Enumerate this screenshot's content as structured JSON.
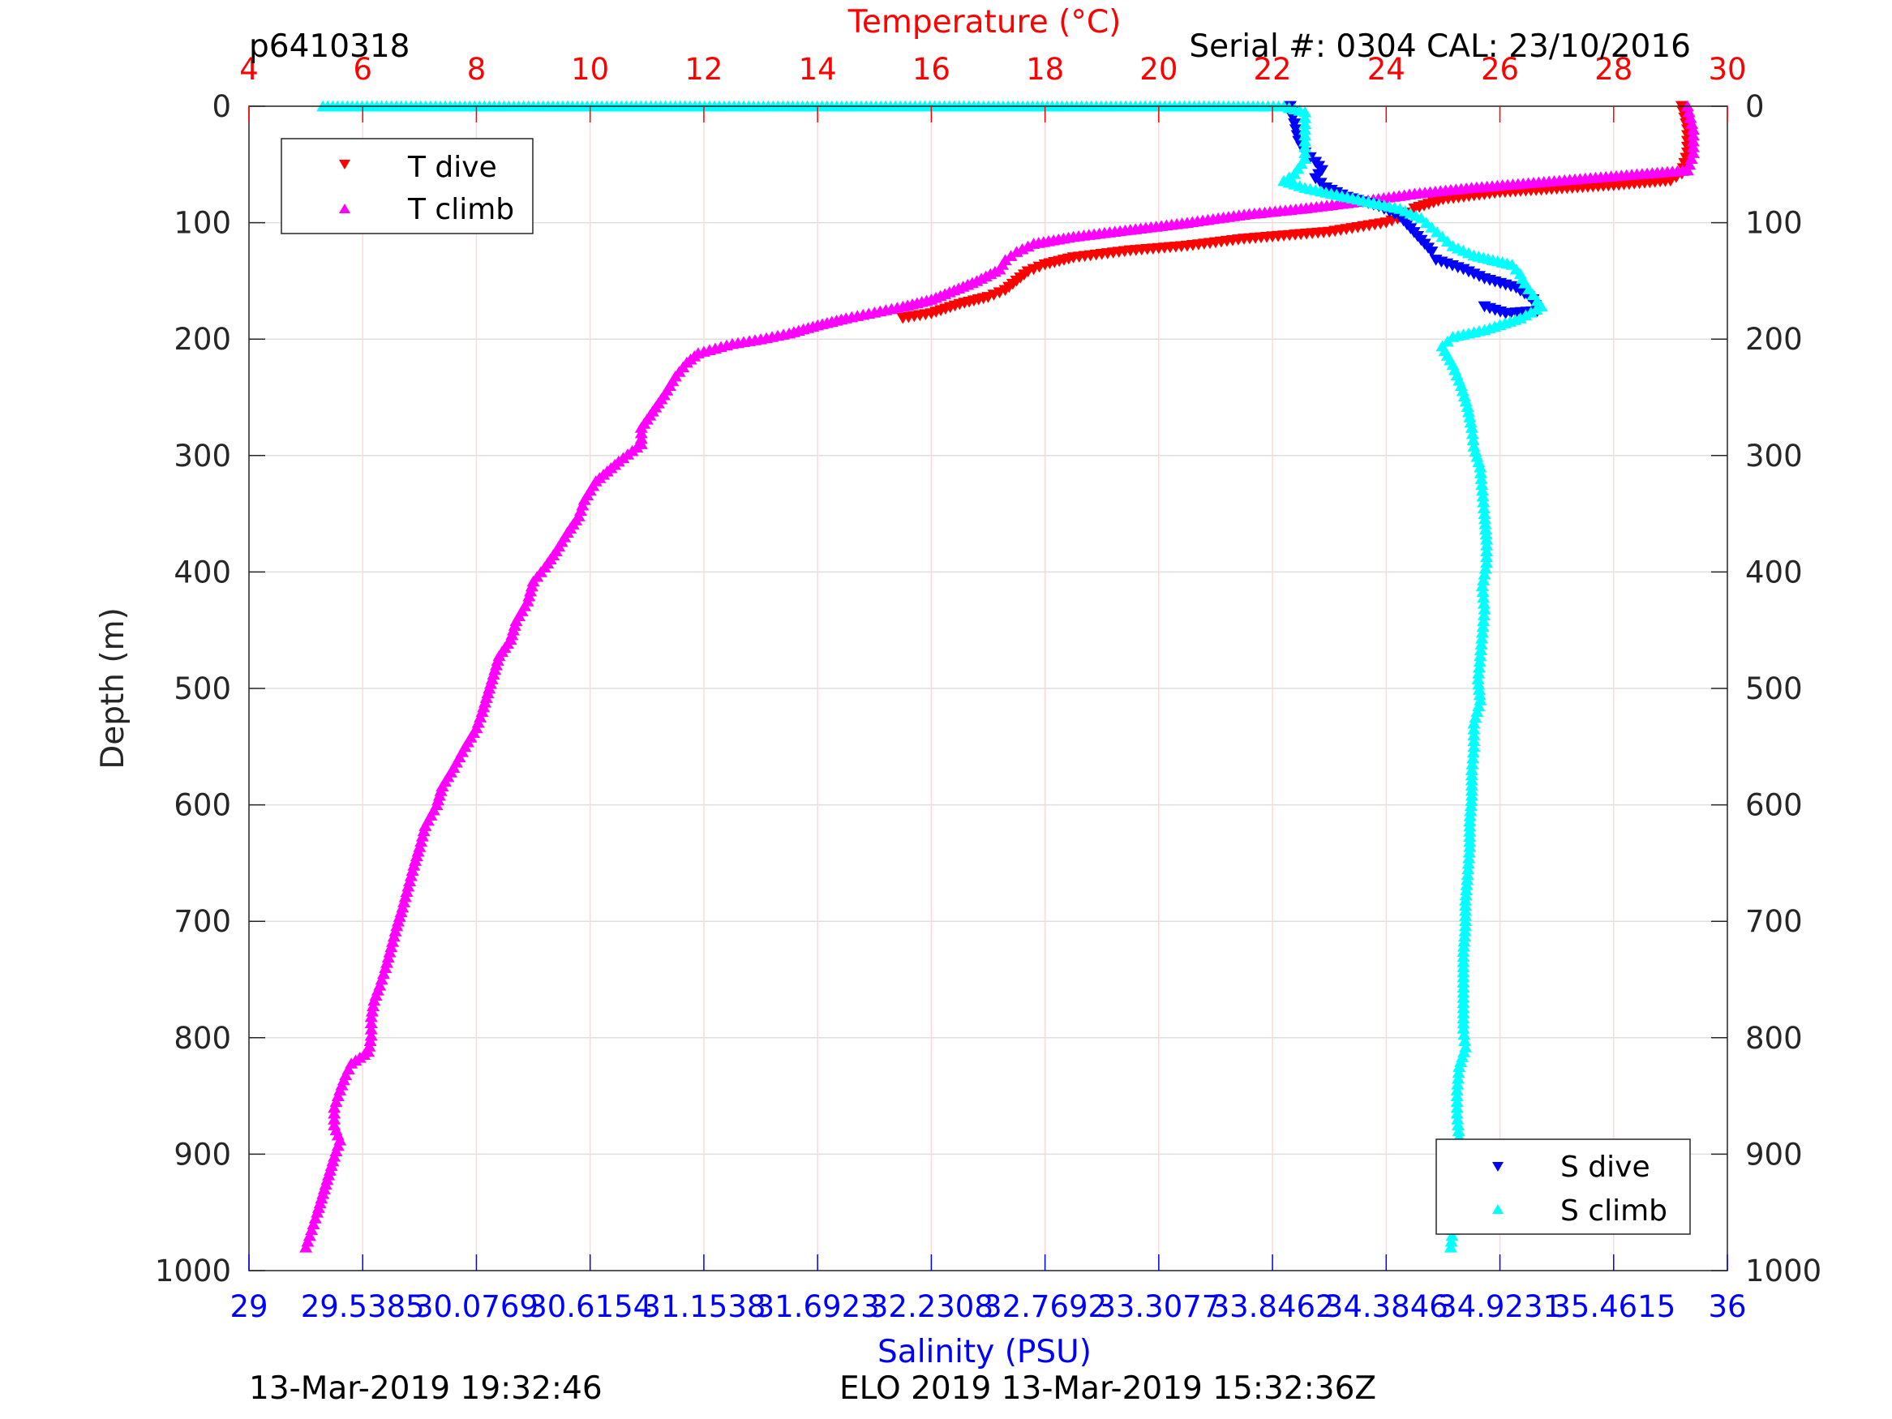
{
  "header": {
    "left_title": "p6410318",
    "right_title": "Serial #: 0304  CAL: 23/10/2016"
  },
  "footer": {
    "left": "13-Mar-2019 19:32:46",
    "center": "ELO 2019 13-Mar-2019 15:32:36Z"
  },
  "colors": {
    "t_dive": "#ff0000",
    "t_climb": "#ff00ff",
    "s_dive": "#0000ff",
    "s_climb": "#00ffff",
    "temp_axis": "#ff0000",
    "sal_axis": "#0000ff"
  },
  "chart_data": {
    "type": "scatter",
    "ylabel": "Depth (m)",
    "top_xlabel": "Temperature (°C)",
    "bottom_xlabel": "Salinity (PSU)",
    "y_reversed": true,
    "ylim": [
      0,
      1000
    ],
    "temp_xlim": [
      4,
      30
    ],
    "sal_xlim": [
      29,
      36
    ],
    "y_ticks": [
      "0",
      "100",
      "200",
      "300",
      "400",
      "500",
      "600",
      "700",
      "800",
      "900",
      "1000"
    ],
    "y_tick_values": [
      0,
      100,
      200,
      300,
      400,
      500,
      600,
      700,
      800,
      900,
      1000
    ],
    "temp_ticks": [
      "4",
      "6",
      "8",
      "10",
      "12",
      "14",
      "16",
      "18",
      "20",
      "22",
      "24",
      "26",
      "28",
      "30"
    ],
    "temp_tick_values": [
      4,
      6,
      8,
      10,
      12,
      14,
      16,
      18,
      20,
      22,
      24,
      26,
      28,
      30
    ],
    "sal_ticks": [
      "29",
      "29.5385",
      "30.0769",
      "30.6154",
      "31.1538",
      "31.6923",
      "32.2308",
      "32.7692",
      "33.3077",
      "33.8462",
      "34.3846",
      "34.9231",
      "35.4615",
      "36"
    ],
    "sal_tick_values": [
      29,
      29.5385,
      30.0769,
      30.6154,
      31.1538,
      31.6923,
      32.2308,
      32.7692,
      33.3077,
      33.8462,
      34.3846,
      34.9231,
      35.4615,
      36
    ],
    "grid": true,
    "legends": [
      {
        "placement": "top-left",
        "entries": [
          "T dive",
          "T climb"
        ]
      },
      {
        "placement": "bottom-right",
        "entries": [
          "S dive",
          "S climb"
        ]
      }
    ],
    "series": [
      {
        "name": "T dive",
        "axis": "temperature",
        "marker": "triangle-down",
        "points": [
          [
            29.2,
            0
          ],
          [
            29.3,
            20
          ],
          [
            29.3,
            40
          ],
          [
            29.2,
            58
          ],
          [
            29.0,
            64
          ],
          [
            28.0,
            68
          ],
          [
            27.0,
            71
          ],
          [
            26.0,
            74
          ],
          [
            25.0,
            80
          ],
          [
            24.5,
            88
          ],
          [
            24.3,
            95
          ],
          [
            24.0,
            100
          ],
          [
            23.5,
            104
          ],
          [
            23.0,
            108
          ],
          [
            22.5,
            110
          ],
          [
            22.0,
            112
          ],
          [
            21.5,
            114
          ],
          [
            21.0,
            117
          ],
          [
            20.5,
            120
          ],
          [
            20.0,
            122
          ],
          [
            19.5,
            124
          ],
          [
            19.0,
            127
          ],
          [
            18.5,
            130
          ],
          [
            18.0,
            136
          ],
          [
            17.7,
            142
          ],
          [
            17.5,
            150
          ],
          [
            17.3,
            158
          ],
          [
            17.0,
            164
          ],
          [
            16.5,
            170
          ],
          [
            16.0,
            178
          ],
          [
            15.5,
            182
          ]
        ]
      },
      {
        "name": "T climb",
        "axis": "temperature",
        "marker": "triangle-up",
        "points": [
          [
            29.3,
            0
          ],
          [
            29.4,
            20
          ],
          [
            29.4,
            40
          ],
          [
            29.3,
            55
          ],
          [
            28.5,
            58
          ],
          [
            27.5,
            62
          ],
          [
            26.5,
            66
          ],
          [
            25.5,
            70
          ],
          [
            24.5,
            75
          ],
          [
            23.5,
            82
          ],
          [
            22.5,
            88
          ],
          [
            21.5,
            93
          ],
          [
            20.5,
            100
          ],
          [
            19.5,
            106
          ],
          [
            18.5,
            112
          ],
          [
            17.8,
            118
          ],
          [
            17.5,
            125
          ],
          [
            17.3,
            132
          ],
          [
            17.2,
            140
          ],
          [
            16.8,
            150
          ],
          [
            16.0,
            166
          ],
          [
            15.5,
            172
          ],
          [
            15.0,
            177
          ],
          [
            14.5,
            182
          ],
          [
            14.0,
            188
          ],
          [
            13.5,
            195
          ],
          [
            13.0,
            200
          ],
          [
            12.5,
            204
          ],
          [
            12.2,
            208
          ],
          [
            11.9,
            212
          ],
          [
            11.7,
            220
          ],
          [
            11.5,
            232
          ],
          [
            11.3,
            248
          ],
          [
            11.1,
            262
          ],
          [
            10.9,
            276
          ],
          [
            10.9,
            290
          ],
          [
            10.5,
            305
          ],
          [
            10.1,
            322
          ],
          [
            9.9,
            338
          ],
          [
            9.8,
            352
          ],
          [
            9.6,
            366
          ],
          [
            9.4,
            382
          ],
          [
            9.2,
            396
          ],
          [
            9.0,
            408
          ],
          [
            8.9,
            425
          ],
          [
            8.7,
            442
          ],
          [
            8.6,
            458
          ],
          [
            8.4,
            472
          ],
          [
            8.3,
            488
          ],
          [
            8.2,
            504
          ],
          [
            8.1,
            520
          ],
          [
            8.0,
            534
          ],
          [
            7.8,
            550
          ],
          [
            7.6,
            568
          ],
          [
            7.4,
            584
          ],
          [
            7.3,
            600
          ],
          [
            7.1,
            618
          ],
          [
            7.0,
            636
          ],
          [
            6.9,
            652
          ],
          [
            6.8,
            670
          ],
          [
            6.7,
            688
          ],
          [
            6.6,
            704
          ],
          [
            6.5,
            722
          ],
          [
            6.4,
            740
          ],
          [
            6.3,
            755
          ],
          [
            6.2,
            768
          ],
          [
            6.15,
            782
          ],
          [
            6.15,
            798
          ],
          [
            6.1,
            812
          ],
          [
            5.8,
            822
          ],
          [
            5.7,
            832
          ],
          [
            5.6,
            845
          ],
          [
            5.5,
            860
          ],
          [
            5.5,
            875
          ],
          [
            5.6,
            888
          ],
          [
            5.5,
            902
          ],
          [
            5.4,
            918
          ],
          [
            5.3,
            934
          ],
          [
            5.2,
            950
          ],
          [
            5.1,
            965
          ],
          [
            5.0,
            980
          ]
        ]
      },
      {
        "name": "S dive",
        "axis": "salinity",
        "marker": "triangle-down",
        "points": [
          [
            33.93,
            0
          ],
          [
            33.95,
            15
          ],
          [
            33.97,
            30
          ],
          [
            34.0,
            40
          ],
          [
            34.05,
            48
          ],
          [
            34.08,
            55
          ],
          [
            34.05,
            62
          ],
          [
            34.1,
            70
          ],
          [
            34.2,
            78
          ],
          [
            34.35,
            86
          ],
          [
            34.45,
            95
          ],
          [
            34.5,
            105
          ],
          [
            34.55,
            115
          ],
          [
            34.6,
            125
          ],
          [
            34.62,
            132
          ],
          [
            34.75,
            140
          ],
          [
            34.85,
            148
          ],
          [
            35.0,
            156
          ],
          [
            35.08,
            166
          ],
          [
            35.1,
            176
          ],
          [
            34.95,
            178
          ],
          [
            34.85,
            172
          ]
        ]
      },
      {
        "name": "S climb",
        "axis": "salinity",
        "marker": "triangle-up",
        "points": [
          [
            29.35,
            0
          ],
          [
            32.2,
            0
          ],
          [
            33.8,
            0
          ],
          [
            33.9,
            0
          ],
          [
            34.0,
            5
          ],
          [
            34.0,
            25
          ],
          [
            34.0,
            45
          ],
          [
            33.95,
            58
          ],
          [
            33.9,
            64
          ],
          [
            34.0,
            70
          ],
          [
            34.15,
            76
          ],
          [
            34.3,
            82
          ],
          [
            34.45,
            88
          ],
          [
            34.55,
            96
          ],
          [
            34.6,
            104
          ],
          [
            34.65,
            112
          ],
          [
            34.7,
            120
          ],
          [
            34.8,
            128
          ],
          [
            34.98,
            136
          ],
          [
            35.02,
            144
          ],
          [
            35.04,
            152
          ],
          [
            35.08,
            162
          ],
          [
            35.12,
            172
          ],
          [
            35.02,
            182
          ],
          [
            34.85,
            192
          ],
          [
            34.7,
            198
          ],
          [
            34.65,
            206
          ],
          [
            34.7,
            222
          ],
          [
            34.74,
            240
          ],
          [
            34.77,
            258
          ],
          [
            34.79,
            276
          ],
          [
            34.8,
            292
          ],
          [
            34.83,
            310
          ],
          [
            34.84,
            330
          ],
          [
            34.85,
            350
          ],
          [
            34.86,
            372
          ],
          [
            34.86,
            392
          ],
          [
            34.84,
            412
          ],
          [
            34.85,
            432
          ],
          [
            34.84,
            452
          ],
          [
            34.83,
            472
          ],
          [
            34.82,
            492
          ],
          [
            34.83,
            510
          ],
          [
            34.8,
            530
          ],
          [
            34.8,
            550
          ],
          [
            34.79,
            570
          ],
          [
            34.79,
            592
          ],
          [
            34.78,
            614
          ],
          [
            34.78,
            636
          ],
          [
            34.77,
            660
          ],
          [
            34.76,
            682
          ],
          [
            34.76,
            704
          ],
          [
            34.75,
            726
          ],
          [
            34.75,
            748
          ],
          [
            34.75,
            770
          ],
          [
            34.75,
            792
          ],
          [
            34.76,
            808
          ],
          [
            34.73,
            825
          ],
          [
            34.72,
            845
          ],
          [
            34.72,
            865
          ],
          [
            34.73,
            885
          ],
          [
            34.72,
            905
          ],
          [
            34.71,
            925
          ],
          [
            34.7,
            945
          ],
          [
            34.7,
            965
          ],
          [
            34.69,
            980
          ]
        ]
      }
    ]
  }
}
